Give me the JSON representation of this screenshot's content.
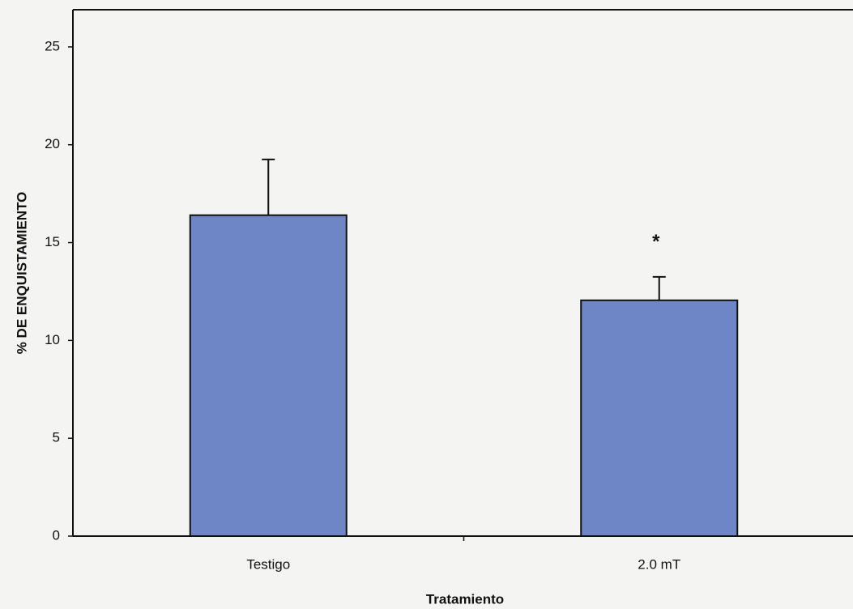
{
  "chart_data": {
    "type": "bar",
    "categories": [
      "Testigo",
      "2.0 mT"
    ],
    "values": [
      16.4,
      12.05
    ],
    "errors": [
      2.85,
      1.2
    ],
    "color": "#6f86c6",
    "ylim": [
      0,
      26.9
    ],
    "yticks": [
      0,
      5,
      10,
      15,
      20,
      25
    ],
    "y_label": "% DE ENQUISTAMIENTO",
    "x_label": "Tratamiento",
    "annotation": "*",
    "grid": false
  }
}
